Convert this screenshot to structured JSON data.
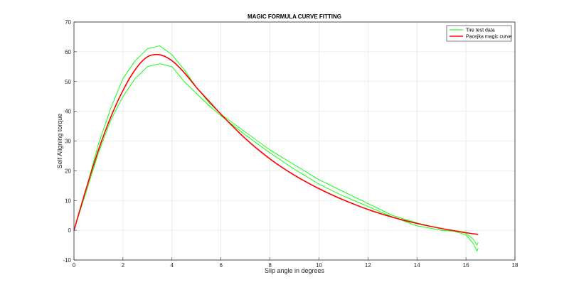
{
  "chart_data": {
    "type": "line",
    "title": "MAGIC FORMULA CURVE FITTING",
    "xlabel": "Slip angle in degrees",
    "ylabel": "Self Aligning torque",
    "xlim": [
      0,
      18
    ],
    "ylim": [
      -10,
      70
    ],
    "xticks": [
      0,
      2,
      4,
      6,
      8,
      10,
      12,
      14,
      16,
      18
    ],
    "yticks": [
      -10,
      0,
      10,
      20,
      30,
      40,
      50,
      60,
      70
    ],
    "grid": true,
    "legend_position": "top-right",
    "series": [
      {
        "name": "Tire test data",
        "color": "#00ff00",
        "style": "band",
        "upper": {
          "x": [
            0,
            0.5,
            1.0,
            1.5,
            2.0,
            2.5,
            3.0,
            3.5,
            4.0,
            4.5,
            5.0,
            5.5,
            6.0,
            7.0,
            8.0,
            9.0,
            10.0,
            11.0,
            12.0,
            13.0,
            14.0,
            15.0,
            15.5,
            16.0,
            16.3,
            16.45,
            16.5
          ],
          "y": [
            0,
            14,
            29,
            41,
            51,
            57,
            61,
            62,
            59,
            54,
            48,
            43,
            39,
            33,
            27,
            22,
            17,
            13,
            9,
            5,
            2.5,
            0.5,
            -0.2,
            -1,
            -3,
            -5,
            -4
          ]
        },
        "lower": {
          "x": [
            0,
            0.5,
            1.0,
            1.5,
            2.0,
            2.5,
            3.0,
            3.5,
            4.0,
            4.5,
            5.0,
            5.5,
            6.0,
            7.0,
            8.0,
            9.0,
            10.0,
            11.0,
            12.0,
            13.0,
            14.0,
            15.0,
            15.5,
            16.0,
            16.3,
            16.45,
            16.5
          ],
          "y": [
            0,
            13,
            26,
            37,
            45,
            51,
            55,
            56,
            55,
            50,
            46,
            42,
            38.5,
            32,
            26,
            20.5,
            15.5,
            11.5,
            8,
            4.5,
            1.5,
            0,
            -0.3,
            -1.5,
            -4.5,
            -7,
            -6
          ]
        }
      },
      {
        "name": "Pacejka magic curve",
        "color": "#ff0000",
        "style": "line",
        "x": [
          0,
          0.5,
          1.0,
          1.5,
          2.0,
          2.5,
          3.0,
          3.5,
          4.0,
          4.5,
          5.0,
          5.5,
          6.0,
          7.0,
          8.0,
          9.0,
          10.0,
          11.0,
          12.0,
          13.0,
          14.0,
          15.0,
          16.0,
          16.5
        ],
        "y": [
          0,
          14,
          27,
          38,
          47,
          54,
          58.3,
          59,
          57,
          53,
          48,
          43.5,
          39,
          30.8,
          24,
          18.5,
          14,
          10.2,
          7,
          4.4,
          2.3,
          0.6,
          -0.8,
          -1.4
        ]
      }
    ]
  }
}
